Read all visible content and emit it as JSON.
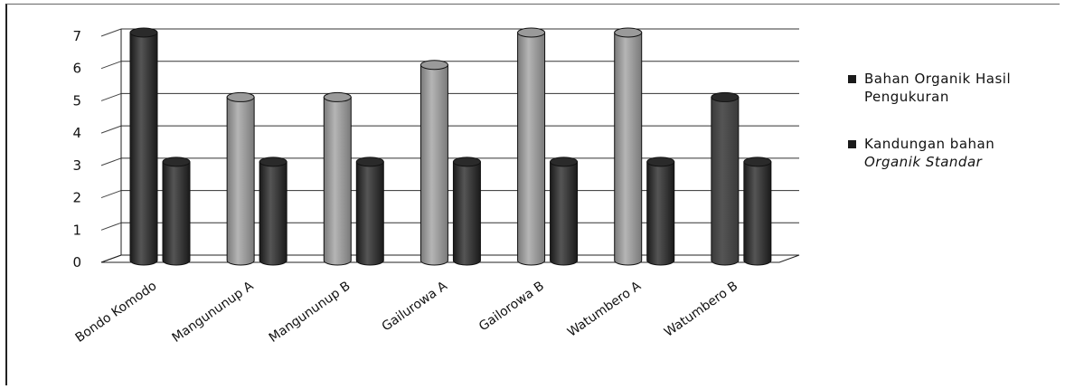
{
  "chart_data": {
    "type": "bar",
    "title": "",
    "xlabel": "",
    "ylabel": "",
    "ylim": [
      0,
      7
    ],
    "yticks": [
      0,
      1,
      2,
      3,
      4,
      5,
      6,
      7
    ],
    "grid": true,
    "style": "3d-cylinder",
    "legend_position": "right",
    "categories": [
      "Bondo Komodo",
      "Mangununup A",
      "Mangununup B",
      "Gailurowa A",
      "Gailorowa B",
      "Watumbero A",
      "Watumbero B"
    ],
    "series": [
      {
        "name": "Bahan Organik Hasil Pengukuran",
        "legend_lines": [
          "Bahan Organik Hasil",
          "Pengukuran"
        ],
        "values": [
          7,
          5,
          5,
          6,
          7,
          7,
          5
        ],
        "colors": [
          "#1a1a1a",
          "#7a7a7a",
          "#7a7a7a",
          "#7a7a7a",
          "#7a7a7a",
          "#7a7a7a",
          "#3a3a3a"
        ],
        "legend_color": "#1a1a1a"
      },
      {
        "name": "Kandungan bahan Organik Standar",
        "legend_lines": [
          "Kandungan bahan",
          "Organik Standar"
        ],
        "values": [
          3,
          3,
          3,
          3,
          3,
          3,
          3
        ],
        "colors": [
          "#1a1a1a",
          "#1a1a1a",
          "#1a1a1a",
          "#1a1a1a",
          "#1a1a1a",
          "#1a1a1a",
          "#1a1a1a"
        ],
        "legend_color": "#1a1a1a"
      }
    ]
  }
}
